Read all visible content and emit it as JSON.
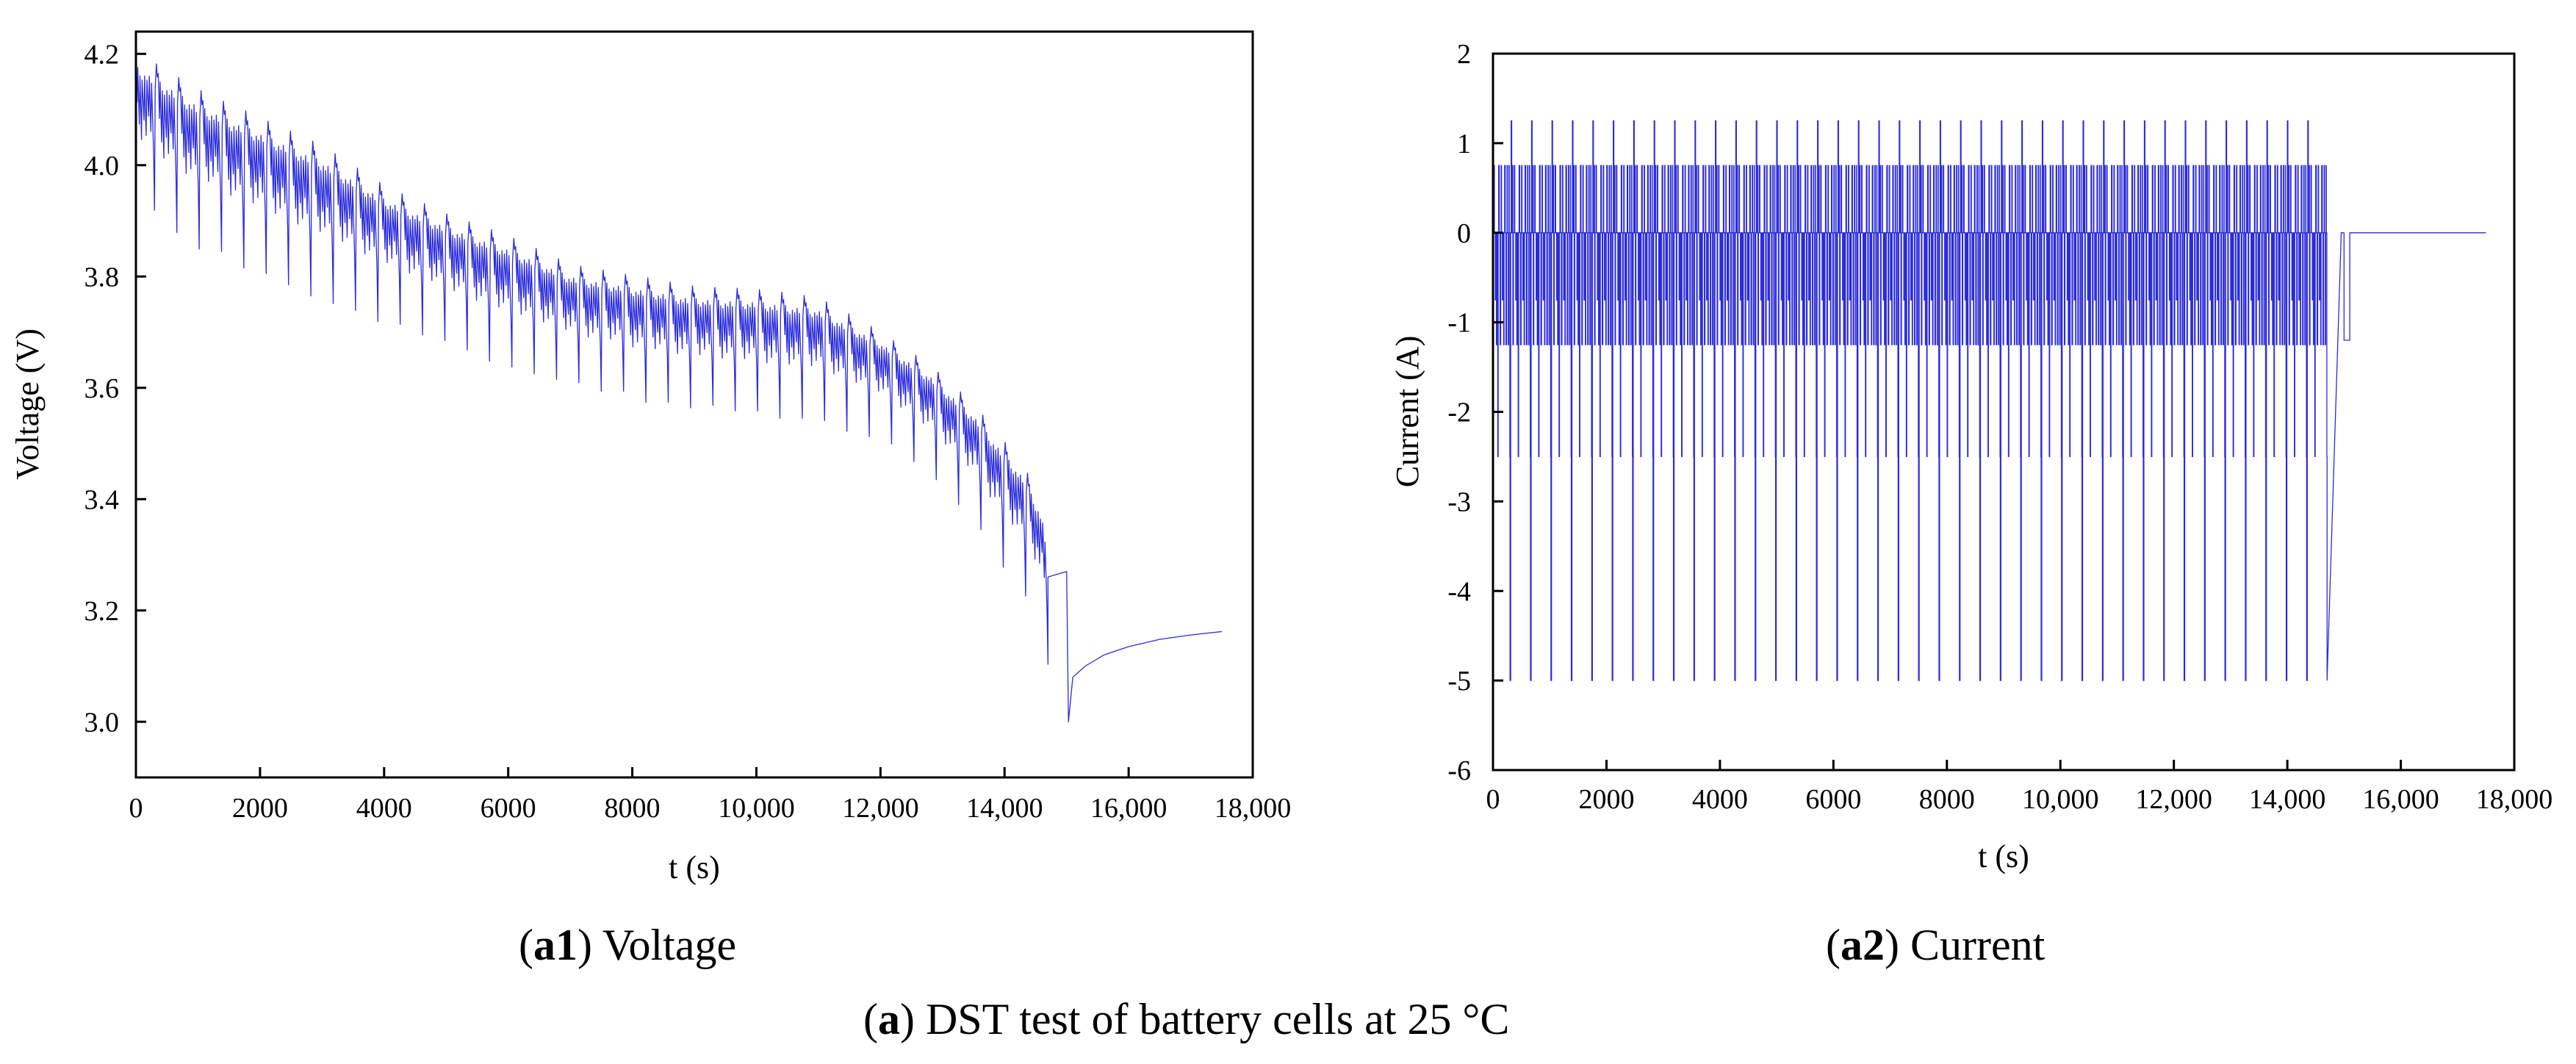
{
  "figure_caption": {
    "label": "a",
    "text": "DST test of battery cells at 25 °C"
  },
  "chart_data": [
    {
      "id": "a1",
      "type": "line",
      "caption_label": "a1",
      "caption_text": "Voltage",
      "title": "",
      "xlabel": "t (s)",
      "ylabel": "Voltage (V)",
      "xlim": [
        0,
        18000
      ],
      "ylim": [
        2.9,
        4.24
      ],
      "xticks": [
        0,
        2000,
        4000,
        6000,
        8000,
        10000,
        12000,
        14000,
        16000,
        18000
      ],
      "xtick_labels": [
        "0",
        "2000",
        "4000",
        "6000",
        "8000",
        "10,000",
        "12,000",
        "14,000",
        "16,000",
        "18,000"
      ],
      "yticks": [
        3.0,
        3.2,
        3.4,
        3.6,
        3.8,
        4.0,
        4.2
      ],
      "ytick_labels": [
        "3.0",
        "3.2",
        "3.4",
        "3.6",
        "3.8",
        "4.0",
        "4.2"
      ],
      "line_color": "#2b2bdc",
      "cycle_period_s": 360,
      "test_end_s": 14700,
      "baseline": {
        "t": [
          0,
          1000,
          2000,
          3000,
          4000,
          5000,
          6000,
          7000,
          8000,
          9000,
          10000,
          11000,
          12000,
          12800,
          13500,
          14000,
          14300,
          14600,
          14700
        ],
        "v": [
          4.19,
          4.12,
          4.07,
          4.02,
          3.95,
          3.9,
          3.86,
          3.81,
          3.79,
          3.77,
          3.765,
          3.75,
          3.69,
          3.63,
          3.56,
          3.49,
          3.45,
          3.38,
          3.31
        ]
      },
      "dip_min_v": [
        3.94,
        3.9,
        3.87,
        3.86,
        3.83,
        3.82,
        3.8,
        3.78,
        3.77,
        3.76,
        3.74,
        3.73,
        3.71,
        3.7,
        3.68,
        3.66,
        3.65,
        3.64,
        3.63,
        3.62,
        3.6,
        3.6,
        3.58,
        3.58,
        3.57,
        3.57,
        3.56,
        3.56,
        3.55,
        3.55,
        3.55,
        3.54,
        3.53,
        3.52,
        3.49,
        3.46,
        3.42,
        3.38,
        3.32,
        3.27,
        3.22
      ],
      "rest_after_test": {
        "t": [
          14700,
          15000,
          15030,
          15100,
          15300,
          15600,
          16000,
          16500,
          17000,
          17500
        ],
        "v": [
          3.26,
          3.27,
          3.0,
          3.08,
          3.1,
          3.12,
          3.135,
          3.148,
          3.156,
          3.162
        ]
      }
    },
    {
      "id": "a2",
      "type": "line",
      "caption_label": "a2",
      "caption_text": "Current",
      "title": "",
      "xlabel": "t (s)",
      "ylabel": "Current (A)",
      "xlim": [
        0,
        18000
      ],
      "ylim": [
        -6,
        2
      ],
      "xticks": [
        0,
        2000,
        4000,
        6000,
        8000,
        10000,
        12000,
        14000,
        16000,
        18000
      ],
      "xtick_labels": [
        "0",
        "2000",
        "4000",
        "6000",
        "8000",
        "10,000",
        "12,000",
        "14,000",
        "16,000",
        "18,000"
      ],
      "yticks": [
        -6,
        -5,
        -4,
        -3,
        -2,
        -1,
        0,
        1,
        2
      ],
      "ytick_labels": [
        "-6",
        "-5",
        "-4",
        "-3",
        "-2",
        "-1",
        "0",
        "1",
        "2"
      ],
      "line_color": "#2b2bdc",
      "cycle_period_s": 360,
      "test_end_s": 14700,
      "current_levels_a": [
        1.25,
        0.75,
        0,
        -0.75,
        -1.25,
        -2.5,
        -5
      ],
      "cycle_profile": {
        "t": [
          0,
          16,
          24,
          40,
          48,
          60,
          72,
          84,
          92,
          100,
          112,
          124,
          136,
          144,
          152,
          164,
          176,
          188,
          196,
          204,
          216,
          228,
          240,
          248,
          256,
          268,
          276,
          284,
          288,
          296,
          300,
          312,
          320,
          330,
          340,
          350,
          360
        ],
        "i": [
          0,
          0.75,
          0,
          -0.75,
          0,
          -1.25,
          0,
          -2.5,
          0,
          0.75,
          0,
          -1.25,
          0,
          0.75,
          0,
          -0.75,
          0,
          -1.25,
          0,
          0.75,
          0,
          -1.25,
          0,
          0.75,
          0,
          -1.25,
          0,
          0.75,
          0,
          -2.5,
          -5,
          0,
          1.25,
          0,
          0.75,
          -1.25,
          0
        ]
      },
      "tail_step": {
        "t": [
          14950,
          15000,
          15000,
          15100,
          15100,
          17500
        ],
        "i": [
          0,
          0,
          -1.2,
          -1.2,
          0,
          0
        ]
      }
    }
  ]
}
